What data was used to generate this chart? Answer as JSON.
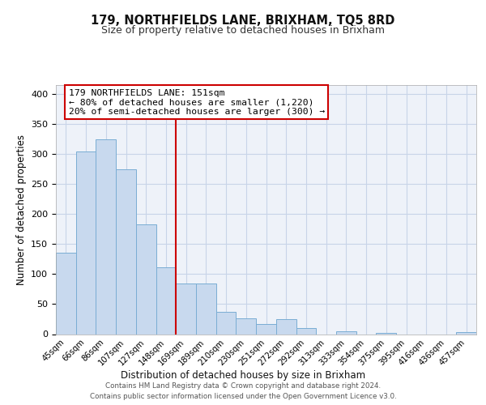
{
  "title": "179, NORTHFIELDS LANE, BRIXHAM, TQ5 8RD",
  "subtitle": "Size of property relative to detached houses in Brixham",
  "xlabel": "Distribution of detached houses by size in Brixham",
  "ylabel": "Number of detached properties",
  "bar_labels": [
    "45sqm",
    "66sqm",
    "86sqm",
    "107sqm",
    "127sqm",
    "148sqm",
    "169sqm",
    "189sqm",
    "210sqm",
    "230sqm",
    "251sqm",
    "272sqm",
    "292sqm",
    "313sqm",
    "333sqm",
    "354sqm",
    "375sqm",
    "395sqm",
    "416sqm",
    "436sqm",
    "457sqm"
  ],
  "bar_values": [
    135,
    305,
    325,
    275,
    183,
    112,
    84,
    84,
    37,
    26,
    17,
    25,
    10,
    0,
    5,
    0,
    2,
    0,
    0,
    0,
    3
  ],
  "bar_color": "#c8d9ee",
  "bar_edge_color": "#7aadd4",
  "vline_x_index": 5.5,
  "vline_color": "#cc0000",
  "annotation_line1": "179 NORTHFIELDS LANE: 151sqm",
  "annotation_line2": "← 80% of detached houses are smaller (1,220)",
  "annotation_line3": "20% of semi-detached houses are larger (300) →",
  "annotation_box_color": "#ffffff",
  "annotation_box_edge": "#cc0000",
  "ylim": [
    0,
    415
  ],
  "yticks": [
    0,
    50,
    100,
    150,
    200,
    250,
    300,
    350,
    400
  ],
  "footer_text": "Contains HM Land Registry data © Crown copyright and database right 2024.\nContains public sector information licensed under the Open Government Licence v3.0.",
  "background_color": "#ffffff",
  "plot_bg_color": "#eef2f9",
  "grid_color": "#c8d4e8"
}
